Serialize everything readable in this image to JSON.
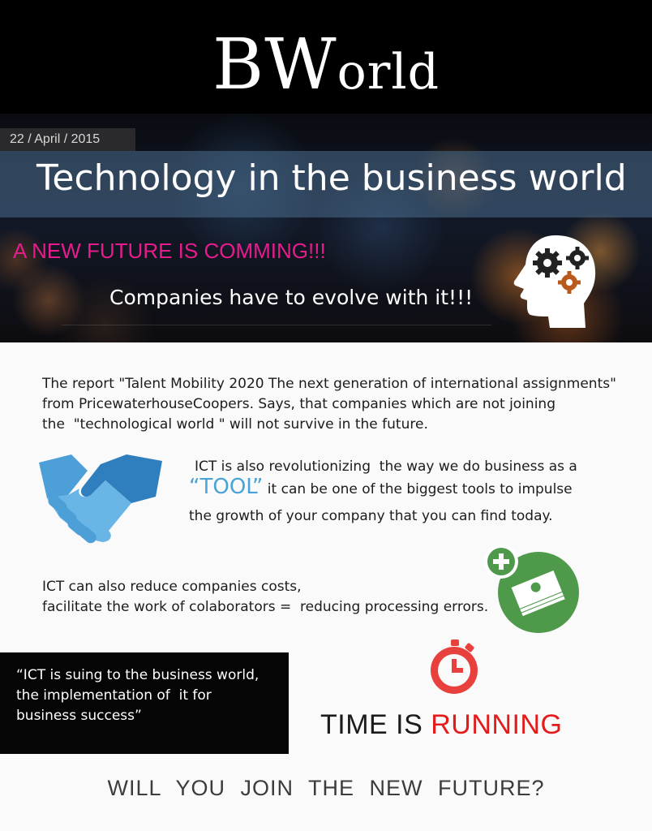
{
  "brand": {
    "initial": "BW",
    "rest": "orld"
  },
  "date": "22 / April / 2015",
  "title": "Technology in the business world",
  "headline": "A NEW FUTURE IS COMMING!!!",
  "subheadline": "Companies have to evolve with it!!!",
  "intro": {
    "line1": "The report \"Talent Mobility 2020 The next generation of international assignments\"",
    "line2": "from PricewaterhouseCoopers. Says, that companies which are not joining",
    "line3": "the  \"technological world \" will not survive in the future."
  },
  "ict_tool": {
    "line1": "ICT is also revolutionizing  the way we do business as a",
    "tool_word": "“TOOL”",
    "line2_rest": " it can be one of the biggest tools to impulse",
    "line3": "the growth of your company that you can find today."
  },
  "ict_costs": {
    "line1": "ICT can also reduce companies costs,",
    "line2": "facilitate the work of colaborators =  reducing processing errors."
  },
  "quote": {
    "line1": "“ICT is suing to the business world,",
    "line2": "the implementation of  it for",
    "line3": "business success”"
  },
  "time": {
    "part1": "TIME  IS ",
    "part2": "RUNNING"
  },
  "cta": "WILL  YOU  JOIN  THE  NEW  FUTURE?",
  "colors": {
    "headline_pink": "#e61c8c",
    "tool_blue": "#4aa3d6",
    "running_red": "#e41b1b",
    "money_green": "#4e9a4a",
    "hands_blue": "#4d9fd8"
  },
  "icons": [
    "head-gears-icon",
    "handshake-icon",
    "money-plus-icon",
    "stopwatch-icon"
  ]
}
